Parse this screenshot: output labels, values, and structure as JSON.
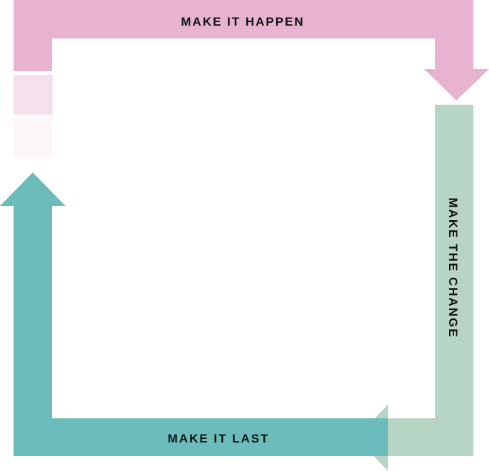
{
  "diagram": {
    "type": "cycle",
    "steps": [
      {
        "id": "top",
        "label": "MAKE IT HAPPEN",
        "color": "#E8B3D0",
        "direction": "right-then-down"
      },
      {
        "id": "right",
        "label": "MAKE THE CHANGE",
        "color": "#B7D5C4",
        "direction": "down-then-left"
      },
      {
        "id": "bottom",
        "label": "MAKE IT LAST",
        "color": "#6CBCBC",
        "direction": "left-then-up"
      }
    ],
    "fade_colors": [
      "#F5E0EC",
      "#FCF5F9"
    ]
  }
}
